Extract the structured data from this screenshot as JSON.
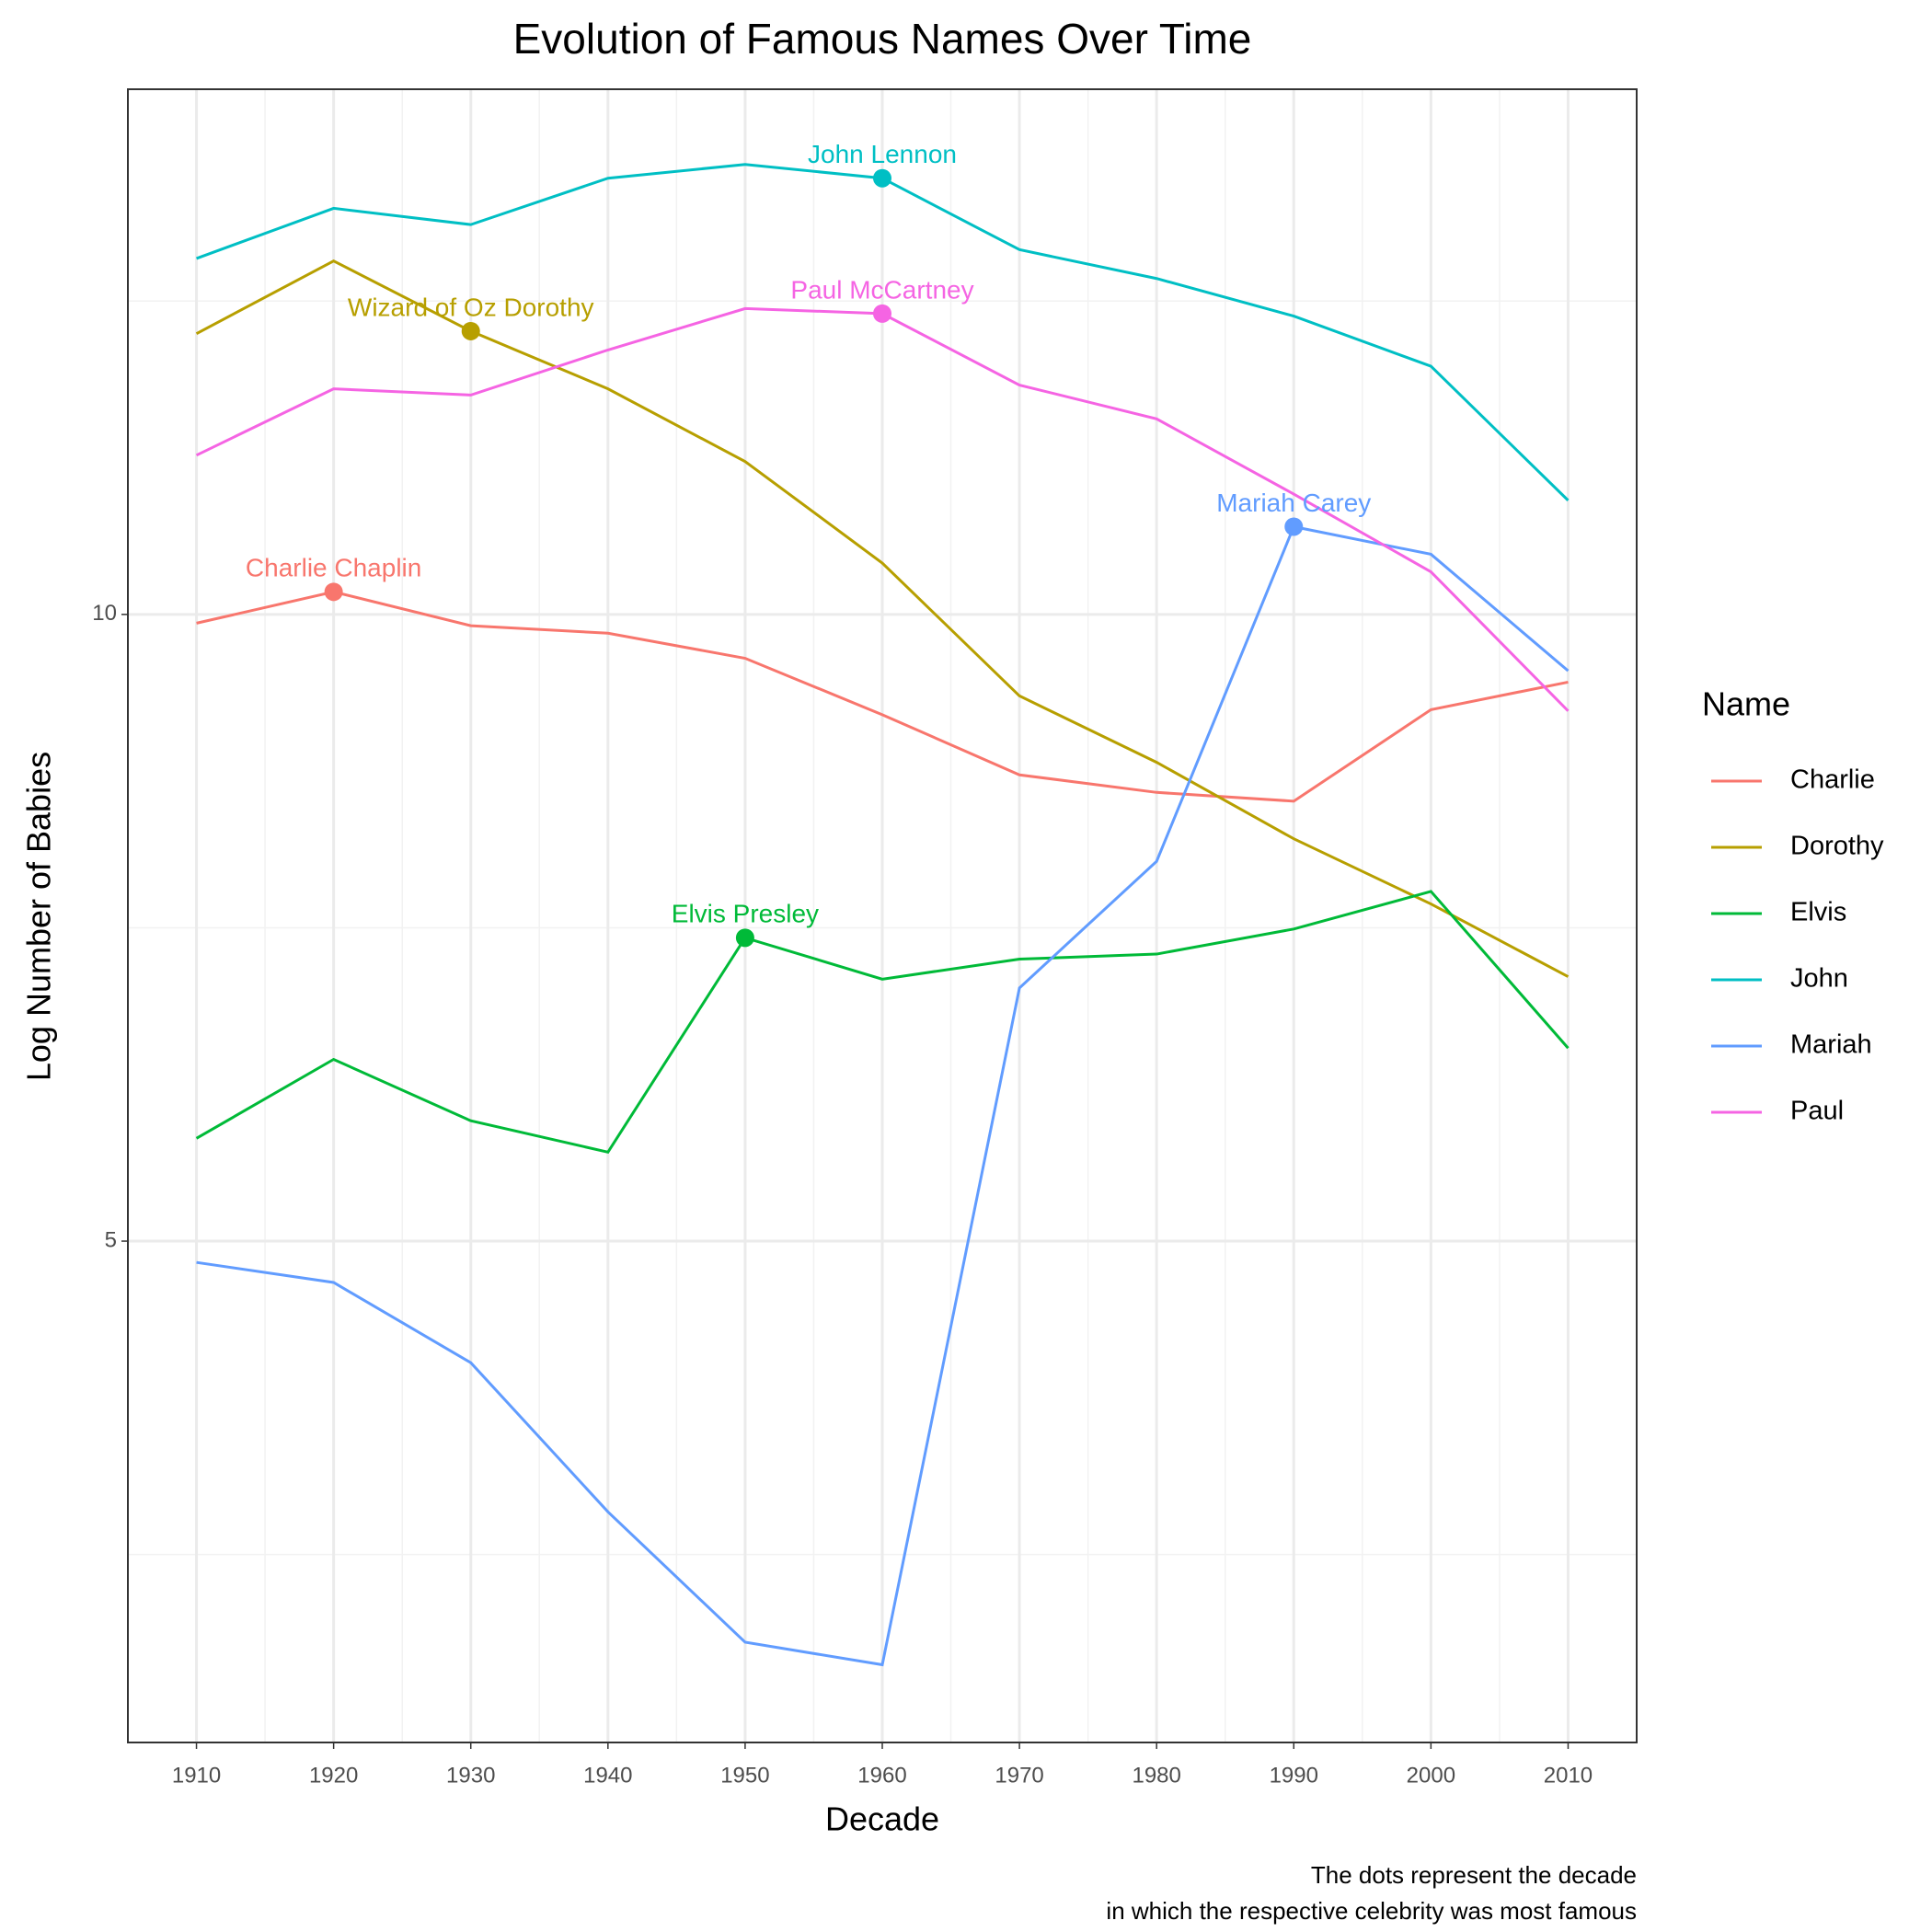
{
  "chart_data": {
    "type": "line",
    "title": "Evolution of Famous Names Over Time",
    "x_label": "Decade",
    "y_label": "Log Number of Babies",
    "legend_title": "Name",
    "legend_position": "right",
    "caption": [
      "The dots represent the decade",
      "in which the respective celebrity was most famous"
    ],
    "x": [
      1910,
      1920,
      1930,
      1940,
      1950,
      1960,
      1970,
      1980,
      1990,
      2000,
      2010
    ],
    "xlim": [
      1905,
      2015
    ],
    "xticks": [
      1910,
      1920,
      1930,
      1940,
      1950,
      1960,
      1970,
      1980,
      1990,
      2000,
      2010
    ],
    "ylim": [
      1.0,
      14.19
    ],
    "yticks": [
      5,
      10
    ],
    "grid": true,
    "series": [
      {
        "name": "Charlie",
        "color": "#F8766D",
        "values": [
          9.93,
          10.18,
          9.91,
          9.85,
          9.65,
          9.2,
          8.72,
          8.58,
          8.51,
          9.24,
          9.46
        ],
        "highlight_x": 1920,
        "annotation": "Charlie Chaplin"
      },
      {
        "name": "Dorothy",
        "color": "#B79F00",
        "values": [
          12.24,
          12.82,
          12.26,
          11.8,
          11.22,
          10.41,
          9.35,
          8.82,
          8.21,
          7.69,
          7.11
        ],
        "highlight_x": 1930,
        "annotation": "Wizard of Oz Dorothy"
      },
      {
        "name": "Elvis",
        "color": "#00BA38",
        "values": [
          5.82,
          6.45,
          5.96,
          5.71,
          7.42,
          7.09,
          7.25,
          7.29,
          7.49,
          7.79,
          6.54
        ],
        "highlight_x": 1950,
        "annotation": "Elvis Presley"
      },
      {
        "name": "John",
        "color": "#00BFC4",
        "values": [
          12.84,
          13.24,
          13.11,
          13.48,
          13.59,
          13.48,
          12.91,
          12.68,
          12.38,
          11.98,
          10.91
        ],
        "highlight_x": 1960,
        "annotation": "John Lennon"
      },
      {
        "name": "Mariah",
        "color": "#619CFF",
        "values": [
          4.83,
          4.67,
          4.03,
          2.84,
          1.8,
          1.62,
          7.02,
          8.03,
          10.7,
          10.48,
          9.55
        ],
        "highlight_x": 1990,
        "annotation": "Mariah Carey"
      },
      {
        "name": "Paul",
        "color": "#F564E3",
        "values": [
          11.27,
          11.8,
          11.75,
          12.11,
          12.44,
          12.4,
          11.83,
          11.56,
          10.96,
          10.34,
          9.23
        ],
        "highlight_x": 1960,
        "annotation": "Paul McCartney"
      }
    ]
  }
}
